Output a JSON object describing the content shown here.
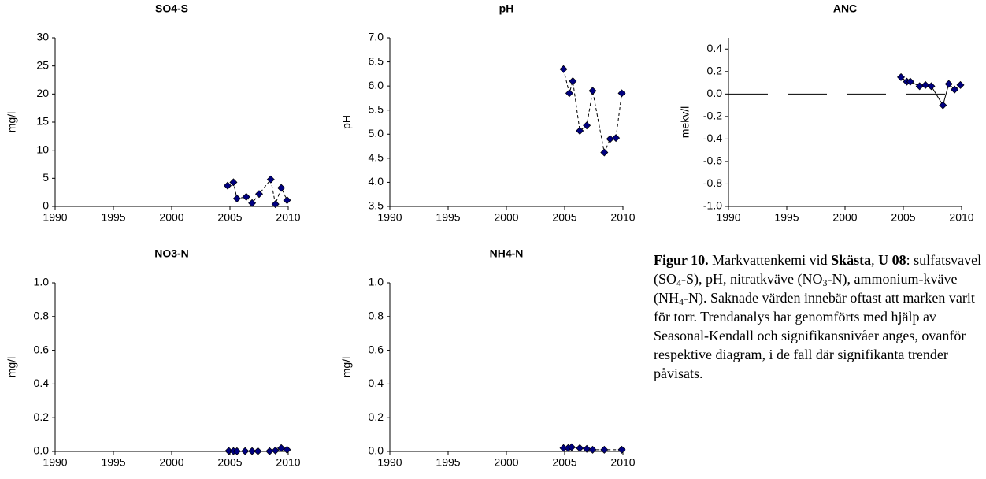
{
  "chart_data": [
    {
      "type": "scatter",
      "title": "SO4-S",
      "y_label": "mg/l",
      "color": "#000080",
      "line_style": "dashed",
      "x": [
        2004.8,
        2005.3,
        2005.6,
        2006.4,
        2006.9,
        2007.5,
        2008.5,
        2008.9,
        2009.4,
        2009.9
      ],
      "values": [
        3.7,
        4.3,
        1.4,
        1.7,
        0.6,
        2.2,
        4.8,
        0.4,
        3.3,
        1.1
      ],
      "xlim": [
        1990,
        2010
      ],
      "xticks": [
        1990,
        1995,
        2000,
        2005,
        2010
      ],
      "ylim": [
        0,
        30
      ],
      "yticks": [
        0,
        5,
        10,
        15,
        20,
        25,
        30
      ]
    },
    {
      "type": "scatter",
      "title": "pH",
      "y_label": "pH",
      "color": "#000080",
      "line_style": "dashed",
      "x": [
        2004.9,
        2005.4,
        2005.7,
        2006.3,
        2006.9,
        2007.4,
        2008.4,
        2008.9,
        2009.4,
        2009.9
      ],
      "values": [
        6.35,
        5.85,
        6.1,
        5.07,
        5.18,
        5.9,
        4.62,
        4.9,
        4.92,
        5.85
      ],
      "xlim": [
        1990,
        2010
      ],
      "xticks": [
        1990,
        1995,
        2000,
        2005,
        2010
      ],
      "ylim": [
        3.5,
        7.0
      ],
      "yticks": [
        3.5,
        {
          "value": 4,
          "label": "4.0"
        },
        4.5,
        {
          "value": 5,
          "label": "5.0"
        },
        5.5,
        {
          "value": 6,
          "label": "6.0"
        },
        6.5,
        {
          "value": 7,
          "label": "7.0"
        }
      ]
    },
    {
      "type": "scatter",
      "title": "ANC",
      "y_label": "mekv/l",
      "color": "#000080",
      "line_style": "solid",
      "zero_line": true,
      "x": [
        2004.8,
        2005.3,
        2005.6,
        2006.4,
        2006.9,
        2007.4,
        2008.4,
        2008.9,
        2009.4,
        2009.9
      ],
      "values": [
        0.15,
        0.11,
        0.11,
        0.07,
        0.08,
        0.07,
        -0.1,
        0.09,
        0.04,
        0.08
      ],
      "xlim": [
        1990,
        2010
      ],
      "xticks": [
        1990,
        1995,
        2000,
        2005,
        2010
      ],
      "ylim": [
        -1.0,
        0.5
      ],
      "yticks": [
        {
          "value": -1,
          "label": "-1.0"
        },
        -0.8,
        -0.6,
        -0.4,
        -0.2,
        {
          "value": 0,
          "label": "0.0"
        },
        0.2,
        0.4
      ]
    },
    {
      "type": "scatter",
      "title": "NO3-N",
      "y_label": "mg/l",
      "color": "#000080",
      "line_style": "dashed",
      "x": [
        2004.9,
        2005.3,
        2005.6,
        2006.3,
        2006.9,
        2007.4,
        2008.4,
        2008.9,
        2009.4,
        2009.9
      ],
      "values": [
        0.003,
        0.002,
        0.001,
        0.002,
        0.002,
        0.001,
        0.001,
        0.005,
        0.02,
        0.01
      ],
      "xlim": [
        1990,
        2010
      ],
      "xticks": [
        1990,
        1995,
        2000,
        2005,
        2010
      ],
      "ylim": [
        0,
        1
      ],
      "yticks": [
        {
          "value": 0,
          "label": "0.0"
        },
        0.2,
        0.4,
        0.6,
        0.8,
        {
          "value": 1,
          "label": "1.0"
        }
      ]
    },
    {
      "type": "scatter",
      "title": "NH4-N",
      "y_label": "mg/l",
      "color": "#000080",
      "line_style": "dashed",
      "x": [
        2004.9,
        2005.3,
        2005.6,
        2006.3,
        2006.9,
        2007.4,
        2008.4,
        2009.9
      ],
      "values": [
        0.02,
        0.02,
        0.025,
        0.02,
        0.015,
        0.01,
        0.01,
        0.01
      ],
      "xlim": [
        1990,
        2010
      ],
      "xticks": [
        1990,
        1995,
        2000,
        2005,
        2010
      ],
      "ylim": [
        0,
        1
      ],
      "yticks": [
        {
          "value": 0,
          "label": "0.0"
        },
        0.2,
        0.4,
        0.6,
        0.8,
        {
          "value": 1,
          "label": "1.0"
        }
      ]
    }
  ],
  "caption": [
    {
      "text": "Figur 10.",
      "style": "bold"
    },
    {
      "text": " Markvattenkemi vid ",
      "style": "normal"
    },
    {
      "text": "Skästa",
      "style": "bold"
    },
    {
      "text": ", ",
      "style": "normal"
    },
    {
      "text": "U 08",
      "style": "bold"
    },
    {
      "text": ": sulfatsvavel (SO",
      "style": "normal"
    },
    {
      "text": "4",
      "style": "sub"
    },
    {
      "text": "-S), pH, nitratkväve (NO",
      "style": "normal"
    },
    {
      "text": "3",
      "style": "sub"
    },
    {
      "text": "-N), ammonium-kväve (NH",
      "style": "normal"
    },
    {
      "text": "4",
      "style": "sub"
    },
    {
      "text": "-N). Saknade värden innebär oftast att marken varit för torr. Trendanalys har genomförts med hjälp av Seasonal-Kendall och signifikansnivåer anges, ovanför respektive diagram, i de fall där signifikanta trender påvisats.",
      "style": "normal"
    }
  ]
}
